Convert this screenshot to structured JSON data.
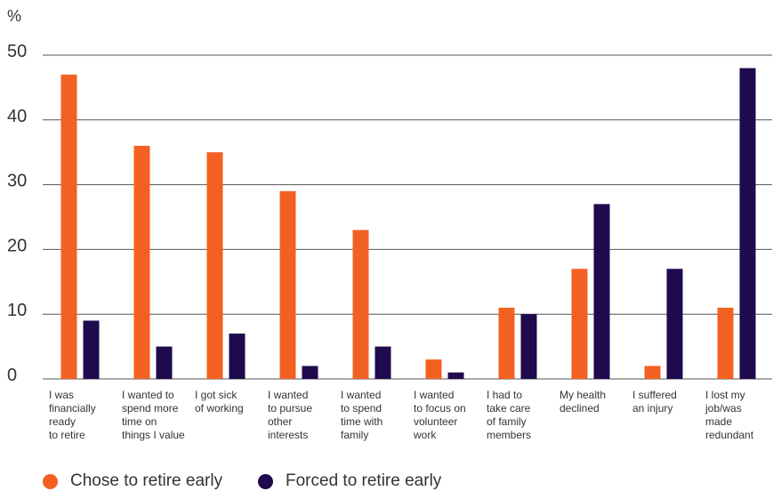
{
  "chart_data": {
    "type": "bar",
    "unit_label": "%",
    "categories": [
      [
        "I was",
        "financially",
        "ready",
        "to retire"
      ],
      [
        "I wanted to",
        "spend more",
        "time on",
        "things I value"
      ],
      [
        "I got sick",
        "of working"
      ],
      [
        "I wanted",
        "to pursue",
        "other",
        "interests"
      ],
      [
        "I wanted",
        "to spend",
        "time with",
        "family"
      ],
      [
        "I wanted",
        "to focus on",
        "volunteer",
        "work"
      ],
      [
        "I had to",
        "take care",
        "of family",
        "members"
      ],
      [
        "My health",
        "declined"
      ],
      [
        "I suffered",
        "an injury"
      ],
      [
        "I lost my",
        "job/was",
        "made",
        "redundant"
      ]
    ],
    "series": [
      {
        "name": "Chose to retire early",
        "color": "#f26122",
        "values": [
          47,
          36,
          35,
          29,
          23,
          3,
          11,
          17,
          2,
          11
        ]
      },
      {
        "name": "Forced to retire early",
        "color": "#1e0a4c",
        "values": [
          9,
          5,
          7,
          2,
          5,
          1,
          10,
          27,
          17,
          48
        ]
      }
    ],
    "yticks": [
      "0",
      "10",
      "20",
      "30",
      "40",
      "50"
    ],
    "ylim": [
      0,
      50
    ],
    "grid": true,
    "legend_position": "bottom-left"
  }
}
